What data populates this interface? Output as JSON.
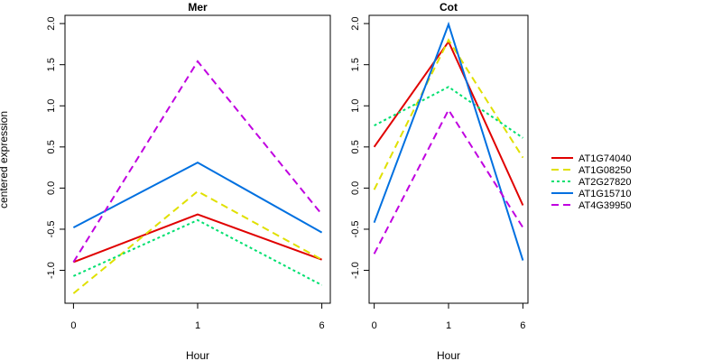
{
  "chart_data": {
    "type": "line",
    "ylabel": "centered expression",
    "ylim": [
      -1.4,
      2.1
    ],
    "yticks": [
      "-1.0",
      "-0.5",
      "0.0",
      "0.5",
      "1.0",
      "1.5",
      "2.0"
    ],
    "yticks_values": [
      -1.0,
      -0.5,
      0.0,
      0.5,
      1.0,
      1.5,
      2.0
    ],
    "grid": false,
    "legend": "right",
    "panels": [
      {
        "title": "Mer",
        "xlabel": "Hour",
        "categories": [
          "0",
          "1",
          "6"
        ],
        "series": [
          {
            "name": "AT1G74040",
            "values": [
              -0.9,
              -0.32,
              -0.87
            ]
          },
          {
            "name": "AT1G08250",
            "values": [
              -1.28,
              -0.04,
              -0.87
            ]
          },
          {
            "name": "AT2G27820",
            "values": [
              -1.07,
              -0.39,
              -1.18
            ]
          },
          {
            "name": "AT1G15710",
            "values": [
              -0.48,
              0.31,
              -0.54
            ]
          },
          {
            "name": "AT4G39950",
            "values": [
              -0.9,
              1.54,
              -0.32
            ]
          }
        ]
      },
      {
        "title": "Cot",
        "xlabel": "Hour",
        "categories": [
          "0",
          "1",
          "6"
        ],
        "series": [
          {
            "name": "AT1G74040",
            "values": [
              0.5,
              1.78,
              -0.21
            ]
          },
          {
            "name": "AT1G08250",
            "values": [
              -0.02,
              1.8,
              0.37
            ]
          },
          {
            "name": "AT2G27820",
            "values": [
              0.76,
              1.23,
              0.61
            ]
          },
          {
            "name": "AT1G15710",
            "values": [
              -0.42,
              1.99,
              -0.88
            ]
          },
          {
            "name": "AT4G39950",
            "values": [
              -0.8,
              0.95,
              -0.48
            ]
          }
        ]
      }
    ],
    "series_styles": [
      {
        "name": "AT1G74040",
        "color": "#e00000",
        "dash": "solid"
      },
      {
        "name": "AT1G08250",
        "color": "#e0e000",
        "dash": "dashed"
      },
      {
        "name": "AT2G27820",
        "color": "#00e070",
        "dash": "dotted"
      },
      {
        "name": "AT1G15710",
        "color": "#0070e0",
        "dash": "solid"
      },
      {
        "name": "AT4G39950",
        "color": "#c000e0",
        "dash": "dashed"
      }
    ]
  }
}
